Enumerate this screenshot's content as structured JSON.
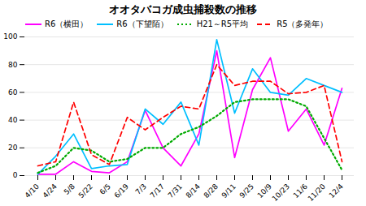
{
  "chart_data": {
    "type": "line",
    "title": "オオタバコガ成虫捕殺数の推移",
    "categories": [
      "4/10",
      "4/24",
      "5/8",
      "5/22",
      "6/5",
      "6/19",
      "7/3",
      "7/17",
      "7/31",
      "8/14",
      "8/28",
      "9/11",
      "9/25",
      "10/9",
      "10/23",
      "11/6",
      "11/20",
      "12/4"
    ],
    "ylim": [
      0,
      100
    ],
    "yticks": [
      0,
      20,
      40,
      60,
      80,
      100
    ],
    "grid": true,
    "legend": "upper left",
    "series": [
      {
        "name": "R6（横田）",
        "color": "#FF00FF",
        "line_style": "solid",
        "values": [
          1,
          1,
          10,
          3,
          2,
          10,
          47,
          20,
          7,
          30,
          90,
          13,
          62,
          85,
          32,
          48,
          22,
          63
        ]
      },
      {
        "name": "R6（下望陌）",
        "color": "#00BFFF",
        "line_style": "solid",
        "values": [
          1,
          14,
          30,
          5,
          7,
          8,
          48,
          37,
          53,
          22,
          98,
          45,
          77,
          60,
          58,
          70,
          65,
          60
        ]
      },
      {
        "name": "H21～R5平均",
        "color": "#00AA00",
        "line_style": "dotted",
        "values": [
          2,
          7,
          20,
          18,
          10,
          12,
          20,
          20,
          30,
          35,
          43,
          53,
          55,
          55,
          55,
          50,
          27,
          4
        ]
      },
      {
        "name": "R5（多発年）",
        "color": "#FF0000",
        "line_style": "dashed",
        "values": [
          7,
          10,
          53,
          15,
          8,
          42,
          33,
          42,
          50,
          48,
          80,
          65,
          68,
          68,
          59,
          60,
          65,
          10
        ]
      }
    ]
  }
}
